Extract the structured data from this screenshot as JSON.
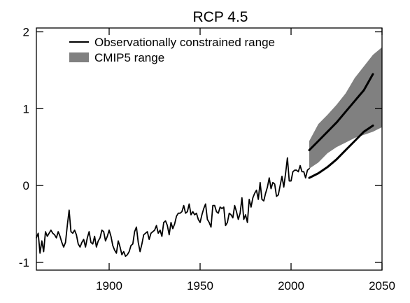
{
  "chart_data": {
    "type": "line",
    "title": "RCP 4.5",
    "xlabel": "",
    "ylabel": "",
    "xlim": [
      1860,
      2050
    ],
    "ylim": [
      -1.1,
      2.05
    ],
    "xticks": [
      {
        "value": 1900,
        "label": "1900"
      },
      {
        "value": 1950,
        "label": "1950"
      },
      {
        "value": 2000,
        "label": "2000"
      },
      {
        "value": 2050,
        "label": "2050"
      }
    ],
    "yticks": [
      {
        "value": -1,
        "label": "-1"
      },
      {
        "value": 0,
        "label": "0"
      },
      {
        "value": 1,
        "label": "1"
      },
      {
        "value": 2,
        "label": "2"
      }
    ],
    "grid": false,
    "legend": {
      "placement": "top-left",
      "entries": [
        {
          "label": "Observationally constrained range",
          "style": "line",
          "color": "#000000"
        },
        {
          "label": "CMIP5 range",
          "style": "band",
          "color": "#808080"
        }
      ]
    },
    "series": [
      {
        "name": "Observed",
        "style": "line",
        "color": "#000000",
        "x": [
          1860,
          1861,
          1862,
          1863,
          1864,
          1865,
          1866,
          1867,
          1868,
          1869,
          1870,
          1871,
          1872,
          1873,
          1874,
          1875,
          1876,
          1877,
          1878,
          1879,
          1880,
          1881,
          1882,
          1883,
          1884,
          1885,
          1886,
          1887,
          1888,
          1889,
          1890,
          1891,
          1892,
          1893,
          1894,
          1895,
          1896,
          1897,
          1898,
          1899,
          1900,
          1901,
          1902,
          1903,
          1904,
          1905,
          1906,
          1907,
          1908,
          1909,
          1910,
          1911,
          1912,
          1913,
          1914,
          1915,
          1916,
          1917,
          1918,
          1919,
          1920,
          1921,
          1922,
          1923,
          1924,
          1925,
          1926,
          1927,
          1928,
          1929,
          1930,
          1931,
          1932,
          1933,
          1934,
          1935,
          1936,
          1937,
          1938,
          1939,
          1940,
          1941,
          1942,
          1943,
          1944,
          1945,
          1946,
          1947,
          1948,
          1949,
          1950,
          1951,
          1952,
          1953,
          1954,
          1955,
          1956,
          1957,
          1958,
          1959,
          1960,
          1961,
          1962,
          1963,
          1964,
          1965,
          1966,
          1967,
          1968,
          1969,
          1970,
          1971,
          1972,
          1973,
          1974,
          1975,
          1976,
          1977,
          1978,
          1979,
          1980,
          1981,
          1982,
          1983,
          1984,
          1985,
          1986,
          1987,
          1988,
          1989,
          1990,
          1991,
          1992,
          1993,
          1994,
          1995,
          1996,
          1997,
          1998,
          1999,
          2000,
          2001,
          2002,
          2003,
          2004,
          2005,
          2006,
          2007,
          2008,
          2009,
          2010
        ],
        "y": [
          -0.68,
          -0.62,
          -0.88,
          -0.72,
          -0.86,
          -0.6,
          -0.66,
          -0.62,
          -0.58,
          -0.62,
          -0.64,
          -0.68,
          -0.6,
          -0.66,
          -0.74,
          -0.8,
          -0.74,
          -0.52,
          -0.32,
          -0.6,
          -0.62,
          -0.58,
          -0.64,
          -0.76,
          -0.8,
          -0.74,
          -0.7,
          -0.8,
          -0.68,
          -0.6,
          -0.74,
          -0.76,
          -0.66,
          -0.8,
          -0.72,
          -0.68,
          -0.58,
          -0.6,
          -0.72,
          -0.66,
          -0.58,
          -0.66,
          -0.78,
          -0.84,
          -0.88,
          -0.72,
          -0.8,
          -0.9,
          -0.86,
          -0.92,
          -0.9,
          -0.86,
          -0.78,
          -0.76,
          -0.6,
          -0.54,
          -0.74,
          -0.86,
          -0.76,
          -0.64,
          -0.62,
          -0.6,
          -0.7,
          -0.62,
          -0.6,
          -0.58,
          -0.52,
          -0.62,
          -0.58,
          -0.66,
          -0.48,
          -0.46,
          -0.52,
          -0.64,
          -0.48,
          -0.56,
          -0.5,
          -0.4,
          -0.36,
          -0.36,
          -0.34,
          -0.26,
          -0.36,
          -0.34,
          -0.24,
          -0.38,
          -0.34,
          -0.38,
          -0.36,
          -0.44,
          -0.48,
          -0.38,
          -0.3,
          -0.24,
          -0.44,
          -0.48,
          -0.54,
          -0.26,
          -0.26,
          -0.34,
          -0.36,
          -0.28,
          -0.3,
          -0.28,
          -0.52,
          -0.48,
          -0.36,
          -0.38,
          -0.42,
          -0.26,
          -0.34,
          -0.44,
          -0.36,
          -0.16,
          -0.44,
          -0.38,
          -0.48,
          -0.18,
          -0.28,
          -0.16,
          -0.1,
          -0.06,
          -0.18,
          0.04,
          -0.18,
          -0.2,
          -0.1,
          -0.02,
          0.1,
          -0.04,
          0.04,
          0.02,
          -0.14,
          -0.12,
          0.0,
          0.12,
          -0.02,
          0.16,
          0.36,
          0.06,
          0.06,
          0.18,
          0.2,
          0.2,
          0.18,
          0.26,
          0.18,
          0.18,
          0.1,
          0.2,
          0.22
        ]
      },
      {
        "name": "Observationally constrained range upper",
        "style": "line",
        "color": "#000000",
        "x": [
          2010,
          2015,
          2020,
          2025,
          2030,
          2035,
          2040,
          2045
        ],
        "y": [
          0.46,
          0.58,
          0.7,
          0.82,
          0.96,
          1.1,
          1.24,
          1.45
        ]
      },
      {
        "name": "Observationally constrained range lower",
        "style": "line",
        "color": "#000000",
        "x": [
          2010,
          2015,
          2020,
          2025,
          2030,
          2035,
          2040,
          2045
        ],
        "y": [
          0.1,
          0.16,
          0.24,
          0.34,
          0.46,
          0.58,
          0.7,
          0.78
        ]
      },
      {
        "name": "CMIP5 range",
        "style": "band",
        "color": "#808080",
        "x": [
          2010,
          2015,
          2020,
          2025,
          2030,
          2035,
          2040,
          2045,
          2050
        ],
        "upper": [
          0.58,
          0.8,
          0.92,
          1.05,
          1.2,
          1.4,
          1.55,
          1.7,
          1.8
        ],
        "lower": [
          0.22,
          0.3,
          0.42,
          0.5,
          0.56,
          0.62,
          0.66,
          0.7,
          0.76
        ]
      }
    ]
  }
}
